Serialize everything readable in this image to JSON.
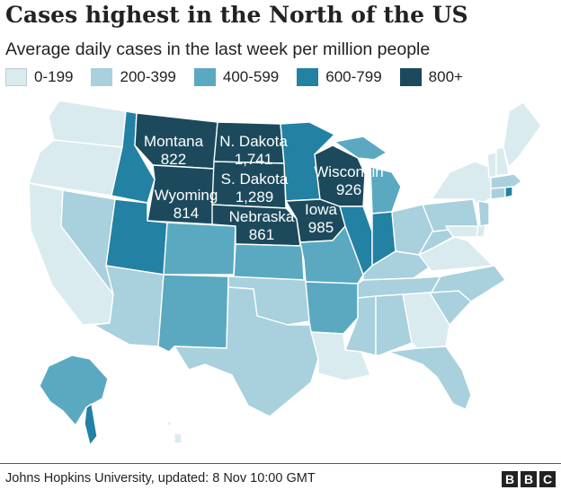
{
  "title": "Cases highest in the North of the US",
  "subtitle": "Average daily cases in the last week per million people",
  "legend": [
    {
      "label": "0-199",
      "color": "#d9ebef"
    },
    {
      "label": "200-399",
      "color": "#a8d0dd"
    },
    {
      "label": "400-599",
      "color": "#5aa9c1"
    },
    {
      "label": "600-799",
      "color": "#2381a3"
    },
    {
      "label": "800+",
      "color": "#1c4a5c"
    }
  ],
  "labelled_states": [
    {
      "name": "Montana",
      "value": "822"
    },
    {
      "name": "N. Dakota",
      "value": "1,741"
    },
    {
      "name": "S. Dakota",
      "value": "1,289"
    },
    {
      "name": "Wyoming",
      "value": "814"
    },
    {
      "name": "Nebraska",
      "value": "861"
    },
    {
      "name": "Iowa",
      "value": "985"
    },
    {
      "name": "Wisconsin",
      "value": "926"
    }
  ],
  "source": "Johns Hopkins University, updated: 8 Nov 10:00 GMT",
  "logo": [
    "B",
    "B",
    "C"
  ]
}
